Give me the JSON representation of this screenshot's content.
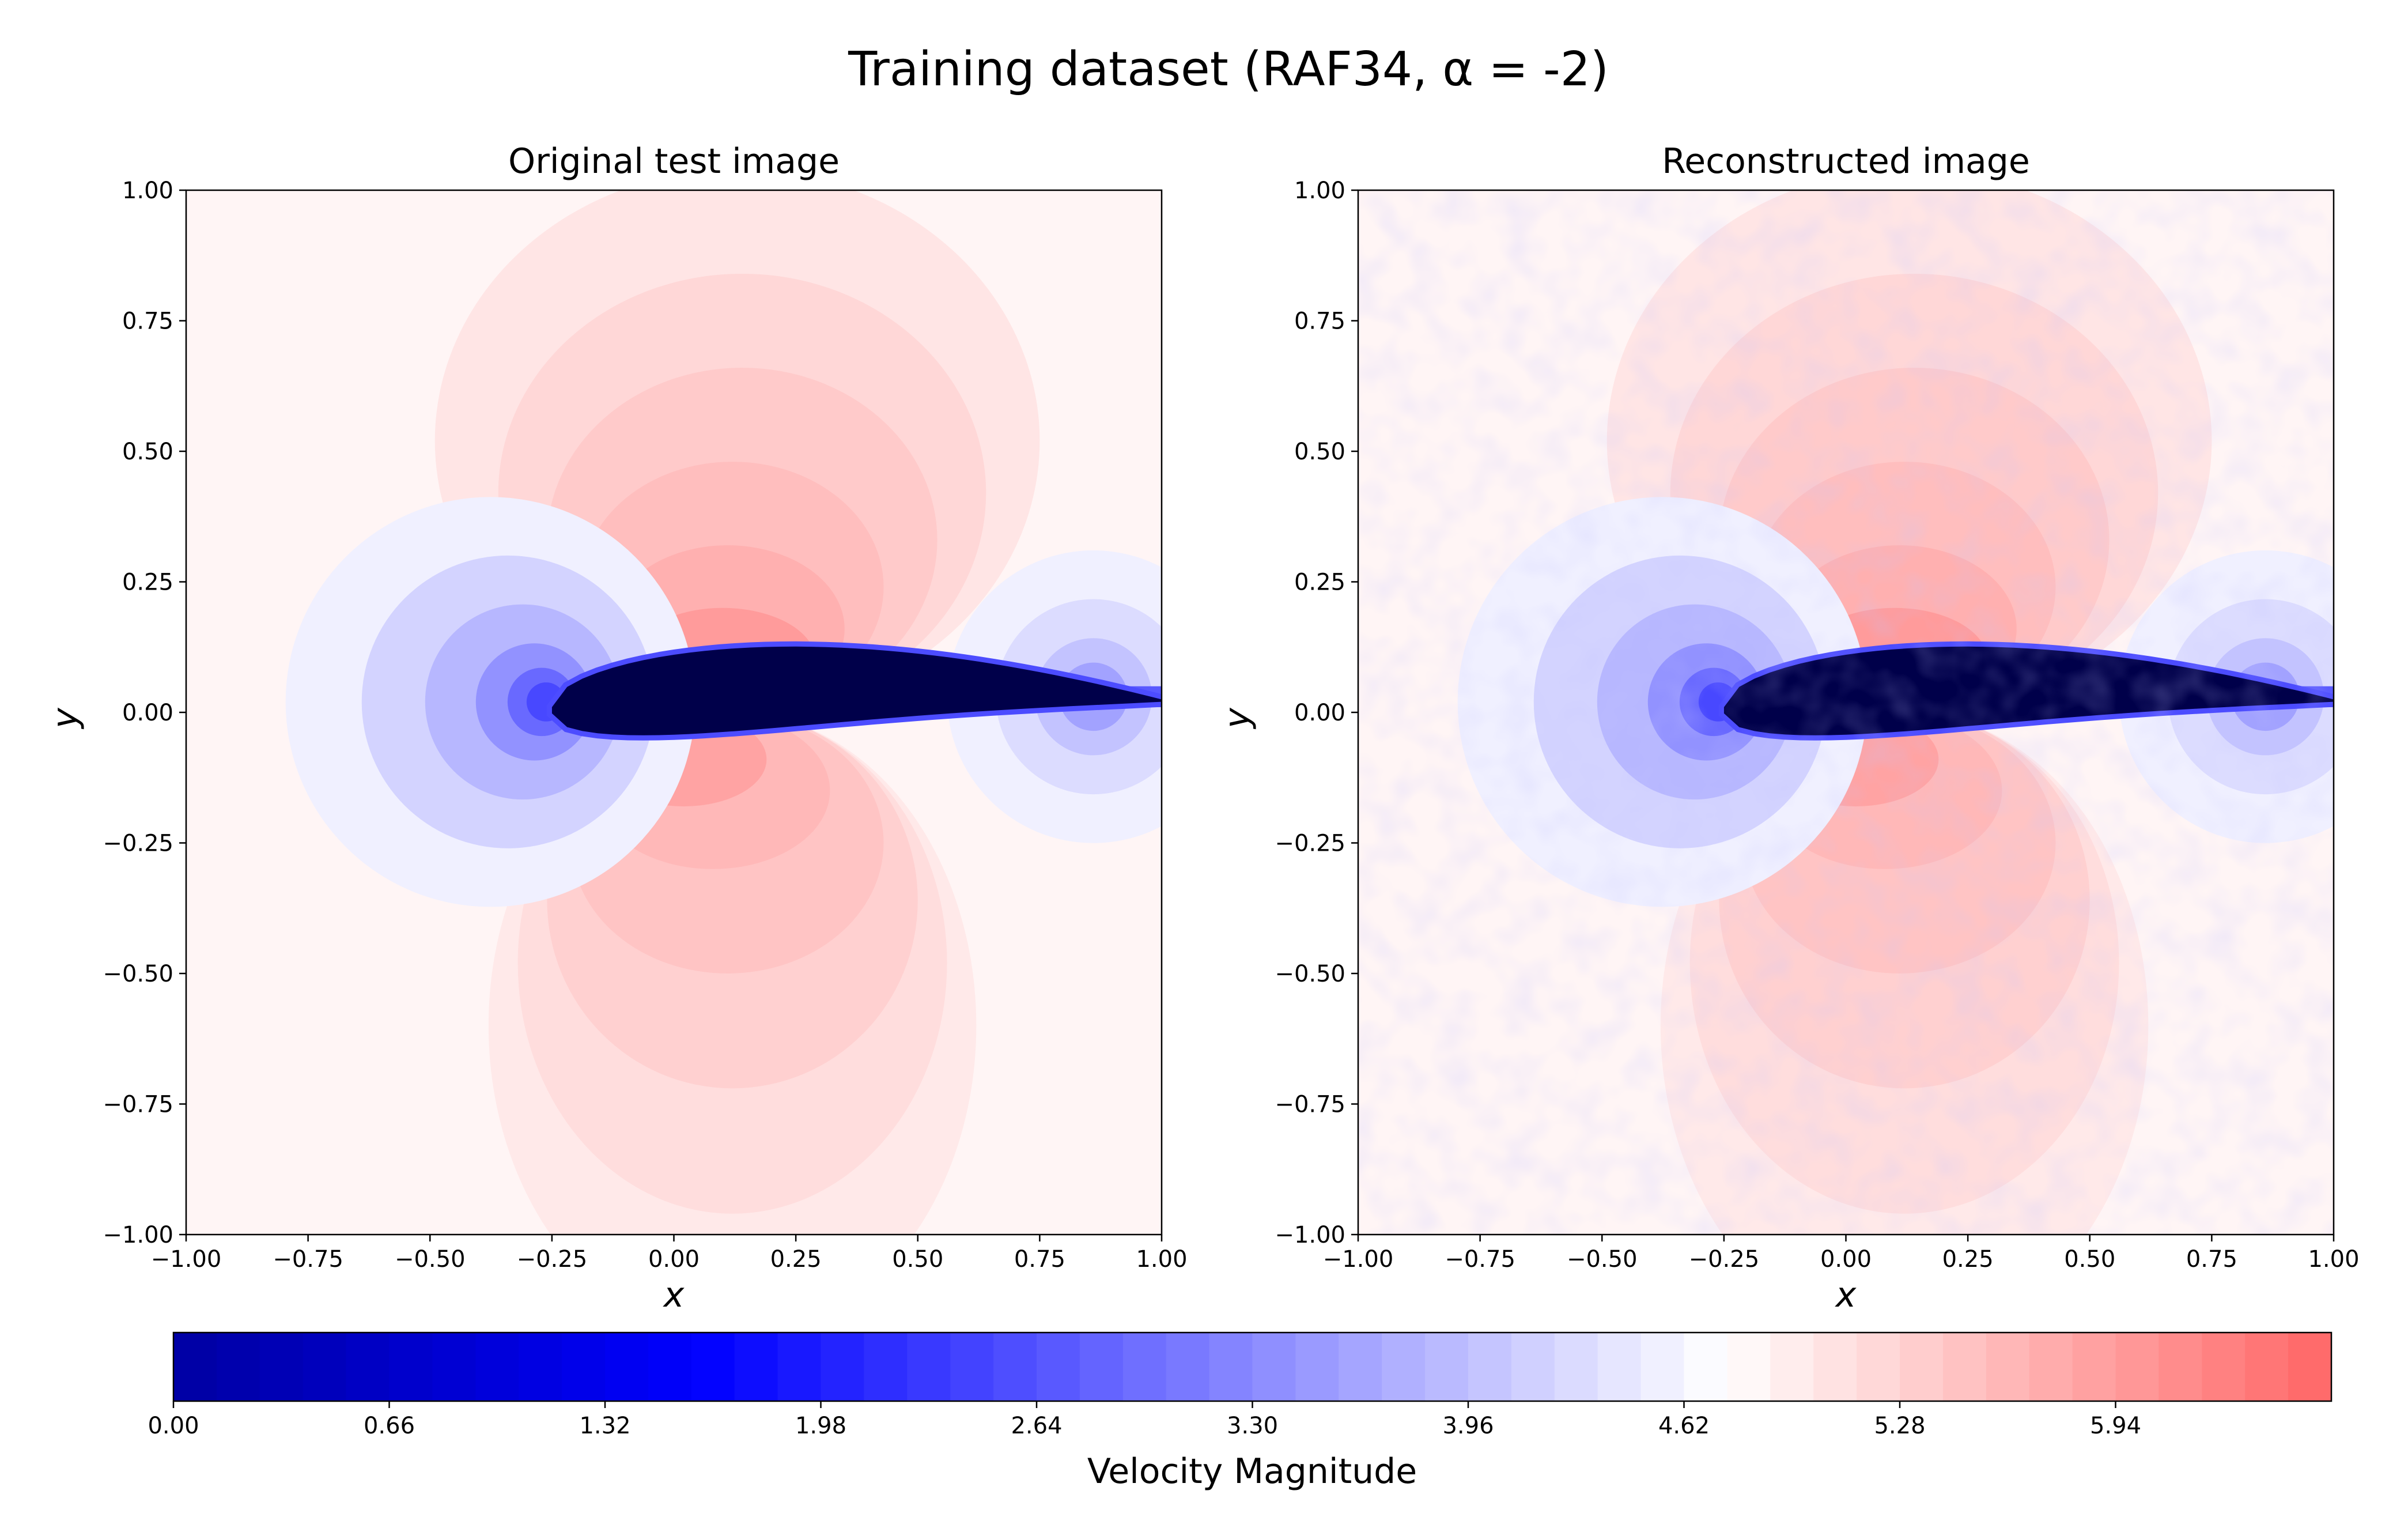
{
  "figure": {
    "title": "Training dataset (RAF34, α = -2)",
    "colors": {
      "airfoil": "#00004a",
      "stagnation": "#0000ff",
      "freestream": "#d2d2fc",
      "accent_red": "#ff9a9a"
    }
  },
  "chart_data": [
    {
      "type": "heatmap",
      "title": "Original test image",
      "xlabel": "x",
      "ylabel": "y",
      "xlim": [
        -1.0,
        1.0
      ],
      "ylim": [
        -1.0,
        1.0
      ],
      "x_ticks": [
        "−1.00",
        "−0.75",
        "−0.50",
        "−0.25",
        "0.00",
        "0.25",
        "0.50",
        "0.75",
        "1.00"
      ],
      "y_ticks": [
        "1.00",
        "0.75",
        "0.50",
        "0.25",
        "0.00",
        "−0.25",
        "−0.50",
        "−0.75",
        "−1.00"
      ],
      "grid": false,
      "field": "velocity magnitude contour around RAF34 airfoil",
      "freestream_value": 4.85,
      "stagnation_point": [
        -0.25,
        0.0
      ],
      "airfoil_x_range": [
        -0.25,
        1.0
      ]
    },
    {
      "type": "heatmap",
      "title": "Reconstructed image",
      "xlabel": "x",
      "ylabel": "y",
      "xlim": [
        -1.0,
        1.0
      ],
      "ylim": [
        -1.0,
        1.0
      ],
      "x_ticks": [
        "−1.00",
        "−0.75",
        "−0.50",
        "−0.25",
        "0.00",
        "0.25",
        "0.50",
        "0.75",
        "1.00"
      ],
      "y_ticks": [
        "1.00",
        "0.75",
        "0.50",
        "0.25",
        "0.00",
        "−0.25",
        "−0.50",
        "−0.75",
        "−1.00"
      ],
      "grid": false,
      "field": "reconstructed velocity magnitude (noisy)",
      "freestream_value": 4.85,
      "stagnation_point": [
        -0.25,
        0.0
      ],
      "airfoil_x_range": [
        -0.25,
        1.0
      ]
    }
  ],
  "colorbar": {
    "label": "Velocity Magnitude",
    "ticks": [
      "0.00",
      "0.66",
      "1.32",
      "1.98",
      "2.64",
      "3.30",
      "3.96",
      "4.62",
      "5.28",
      "5.94"
    ],
    "tick_values": [
      0.0,
      0.66,
      1.32,
      1.98,
      2.64,
      3.3,
      3.96,
      4.62,
      5.28,
      5.94
    ],
    "range": [
      0.0,
      6.6
    ],
    "levels": 50,
    "colormap": "seismic"
  }
}
